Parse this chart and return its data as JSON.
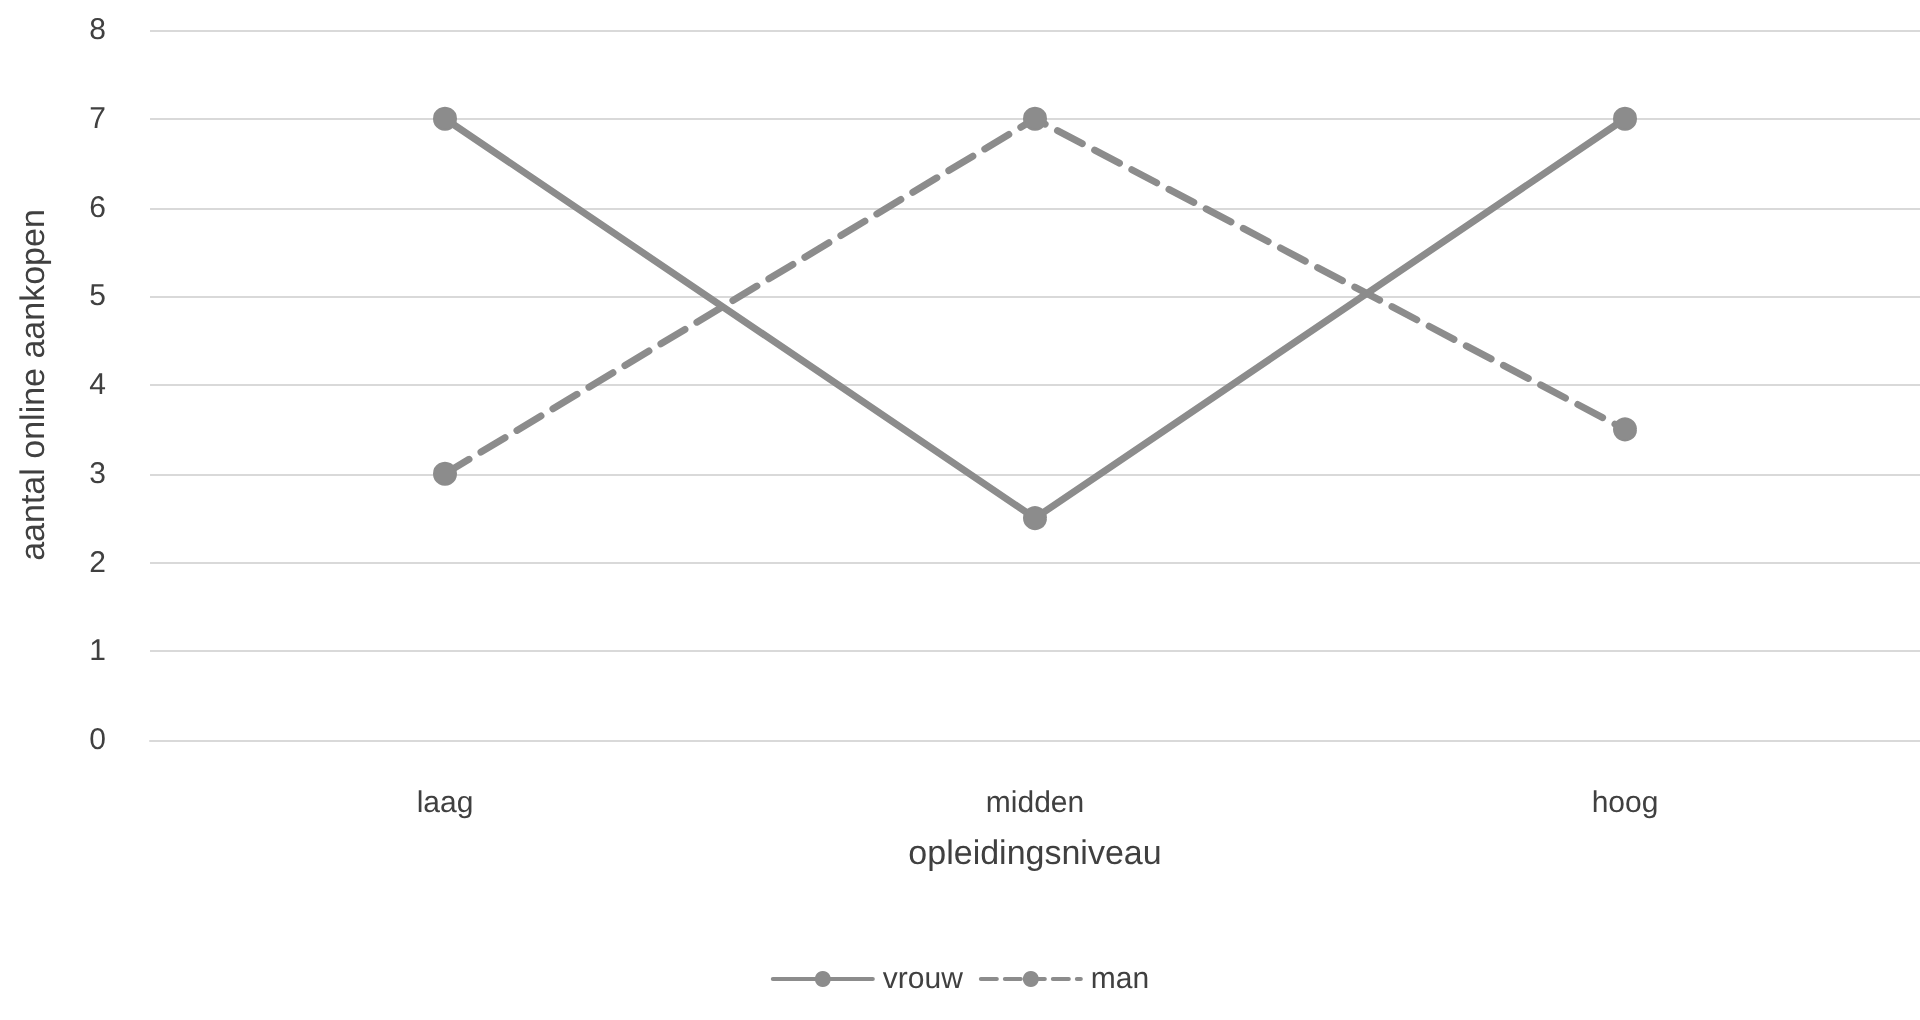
{
  "chart_data": {
    "type": "line",
    "xlabel": "opleidingsniveau",
    "ylabel": "aantal online aankopen",
    "categories": [
      "laag",
      "midden",
      "hoog"
    ],
    "series": [
      {
        "name": "vrouw",
        "color": "#8c8c8c",
        "values": [
          7,
          2.5,
          7
        ],
        "line_style": "solid"
      },
      {
        "name": "man",
        "color": "#8c8c8c",
        "values": [
          3,
          7,
          3.5
        ],
        "line_style": "dashed"
      }
    ],
    "ylim": [
      0,
      8
    ],
    "yticks": [
      0,
      1,
      2,
      3,
      4,
      5,
      6,
      7,
      8
    ],
    "grid": "y",
    "legend": "bottom",
    "marker": "circle"
  }
}
